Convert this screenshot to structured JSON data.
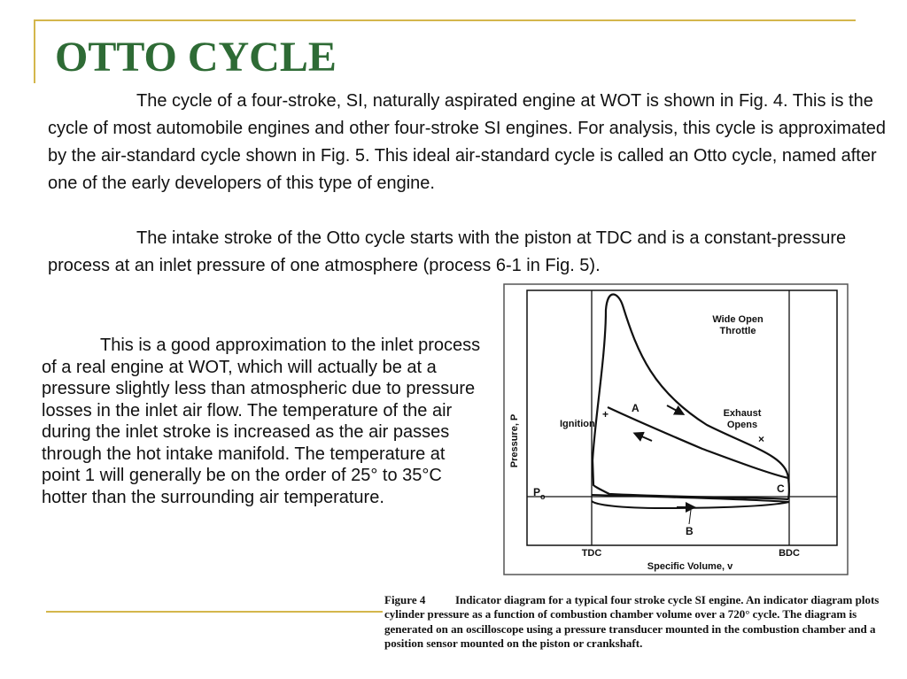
{
  "slide": {
    "title": "OTTO CYCLE",
    "paragraph1": "The cycle of a four-stroke, SI, naturally aspirated engine at WOT is shown in Fig. 4. This is the cycle of most automobile engines and other four-stroke SI engines. For analysis, this cycle is approximated by the air-standard cycle shown in Fig. 5. This ideal air-standard cycle is called an Otto cycle, named after one of the early developers of this type of engine.",
    "paragraph2": "The intake stroke of the Otto cycle starts with the piston at TDC and is a constant-pressure process at an inlet pressure of one atmosphere (process 6-1 in Fig. 5).",
    "side_text": "This is a good approximation to the inlet process of a real engine at WOT, which will actually be at a pressure slightly less than atmospheric due to pressure losses in the inlet air flow. The temperature of the air during the inlet stroke is increased as the air passes through the hot intake manifold. The temperature at point 1 will generally be on the order of 25° to 35°C hotter than the surrounding air temperature."
  },
  "figure": {
    "y_axis_label": "Pressure, P",
    "x_axis_label": "Specific Volume, v",
    "tdc_label": "TDC",
    "bdc_label": "BDC",
    "po_label": "P",
    "po_subscript": "o",
    "wot_line1": "Wide Open",
    "wot_line2": "Throttle",
    "ignition_label": "Ignition",
    "exhaust_line1": "Exhaust",
    "exhaust_line2": "Opens",
    "loop_a_label": "A",
    "loop_b_label": "B",
    "point_c_label": "C"
  },
  "caption": {
    "label": "Figure 4",
    "text": "Indicator diagram for a typical four stroke cycle SI engine. An indicator diagram plots cylinder pressure as a function of combustion chamber volume over a 720° cycle. The diagram is generated on an oscilloscope using a pressure transducer mounted in the combustion chamber and a position sensor mounted on the piston or crankshaft."
  }
}
